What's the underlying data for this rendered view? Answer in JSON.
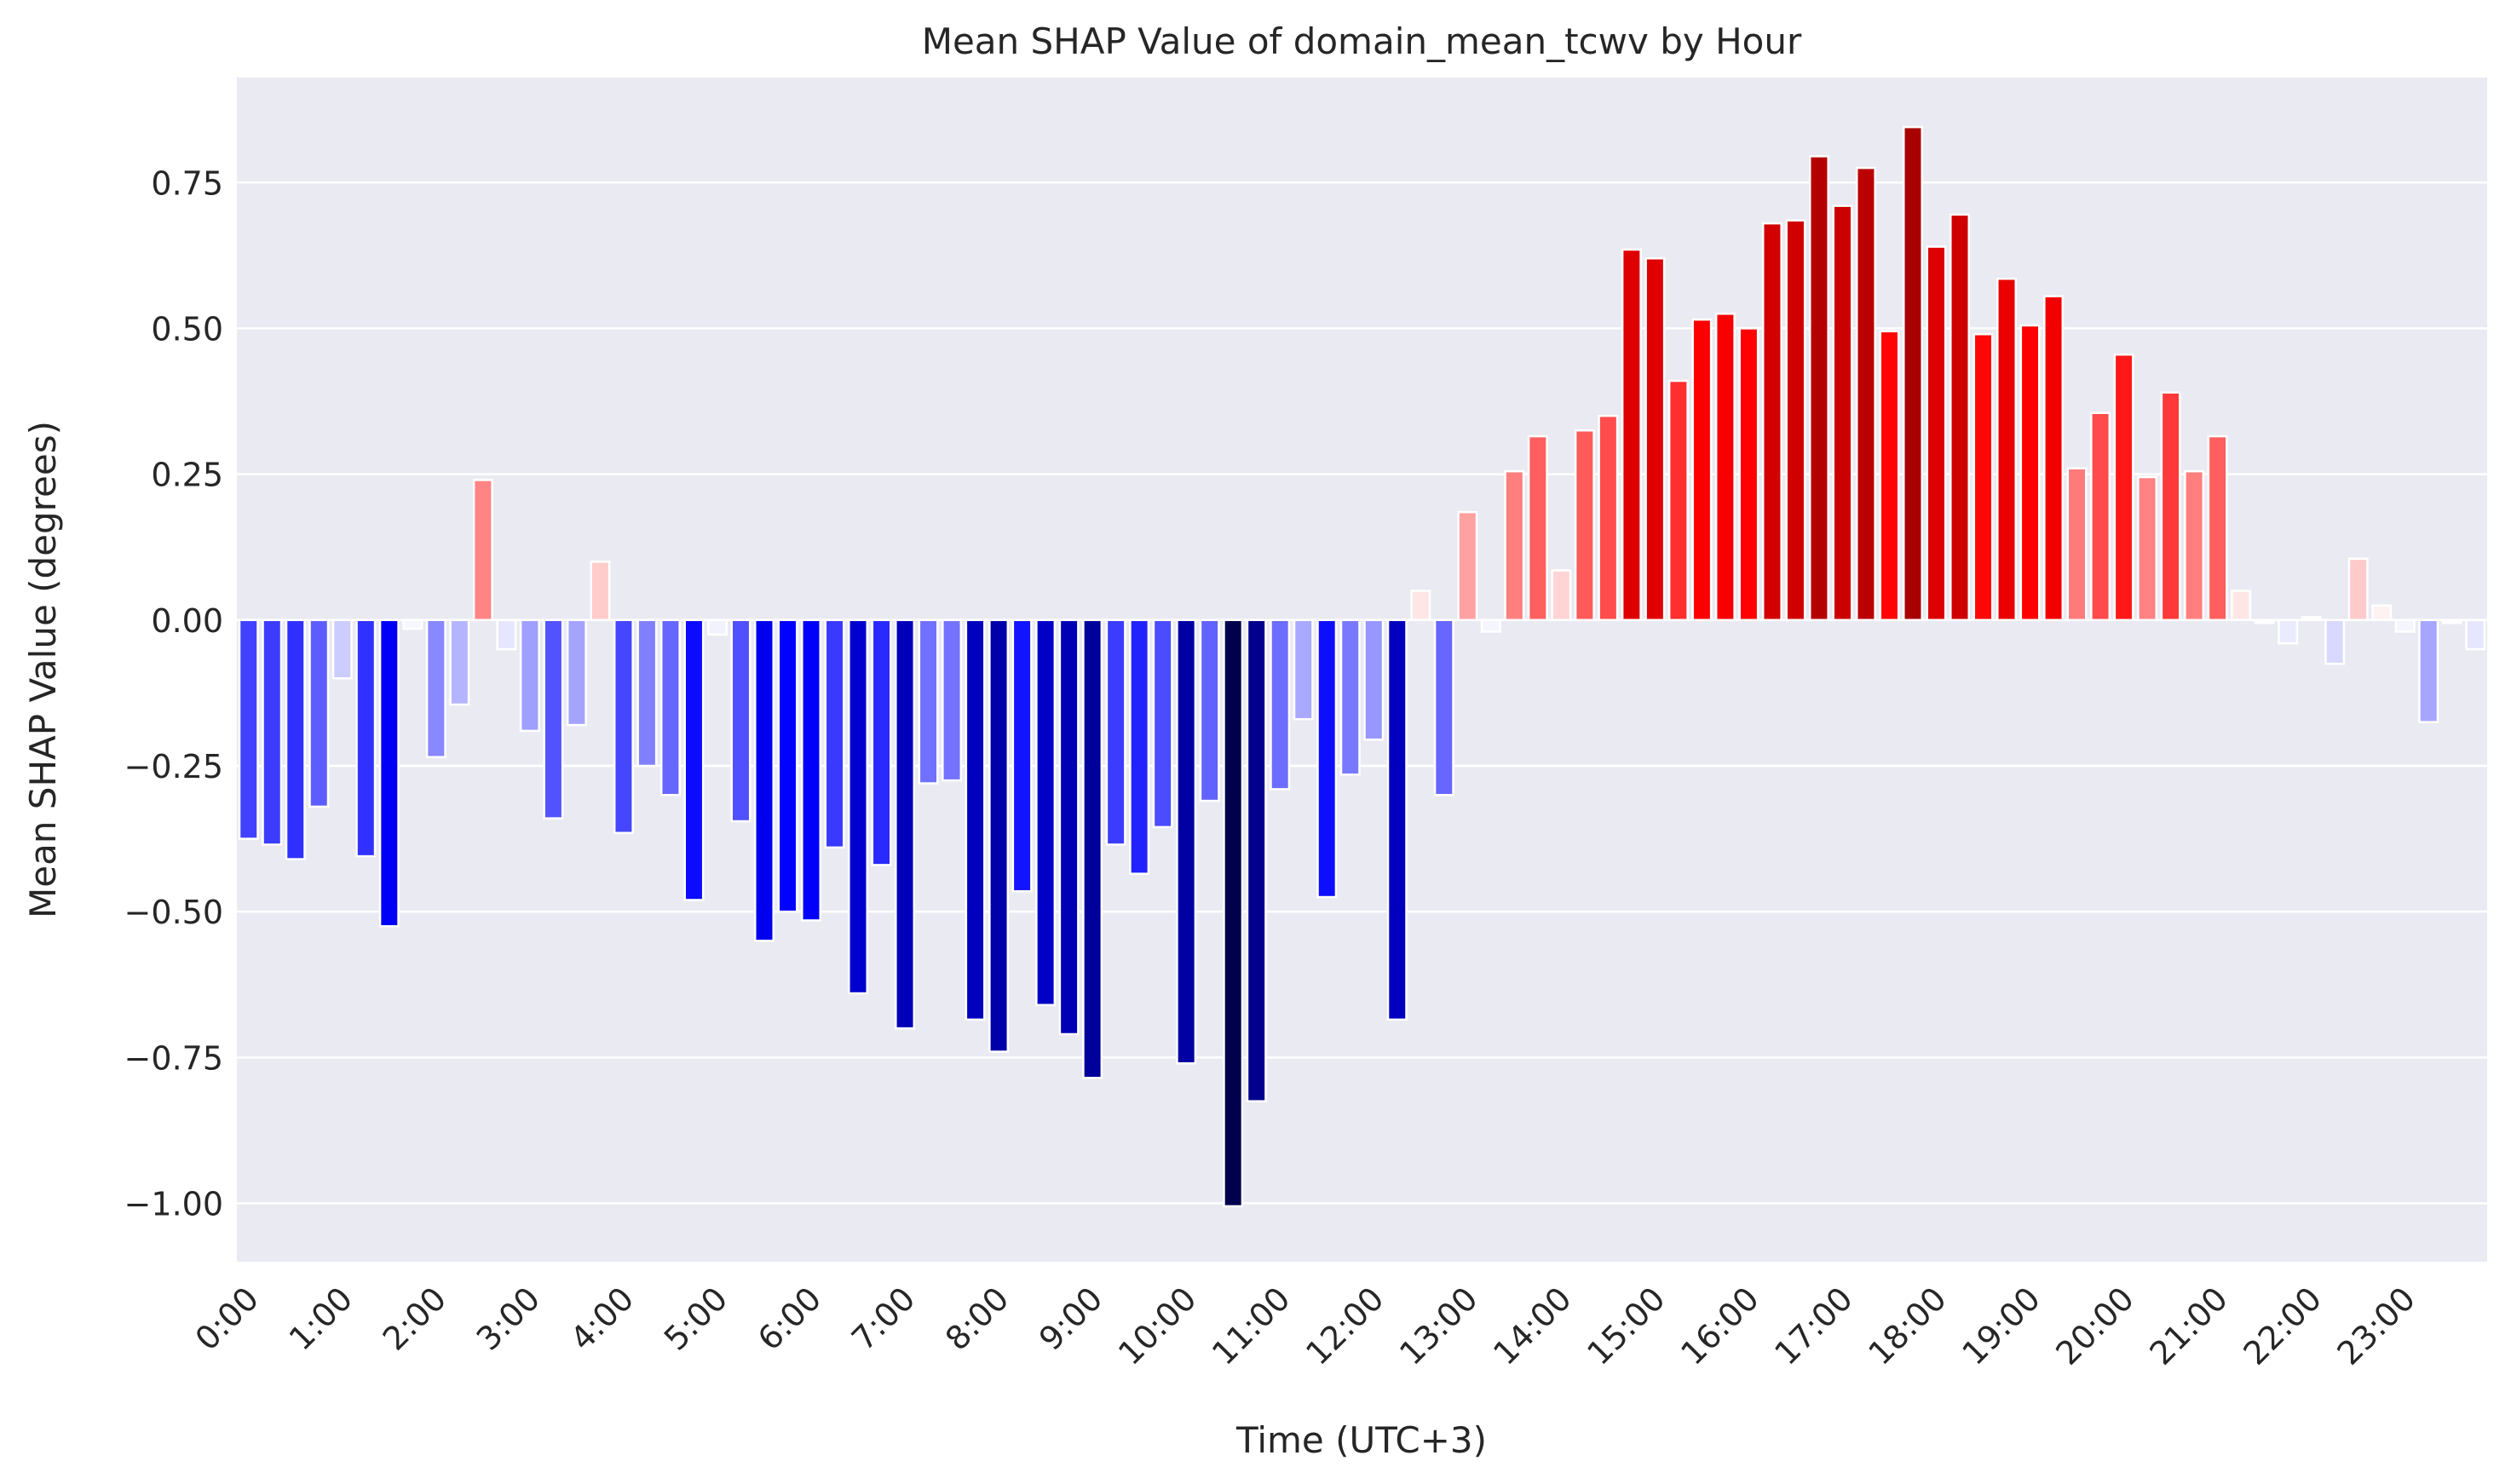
{
  "chart_data": {
    "type": "bar",
    "title": "Mean SHAP Value of domain_mean_tcwv by Hour",
    "xlabel": "Time (UTC+3)",
    "ylabel": "Mean SHAP Value (degrees)",
    "ylim": [
      -1.1,
      0.93
    ],
    "yticks": [
      -1.0,
      -0.75,
      -0.5,
      -0.25,
      0.0,
      0.25,
      0.5,
      0.75
    ],
    "ytick_labels": [
      "−1.00",
      "−0.75",
      "−0.50",
      "−0.25",
      "0.00",
      "0.25",
      "0.50",
      "0.75"
    ],
    "xtick_labels": [
      "0:00",
      "1:00",
      "2:00",
      "3:00",
      "4:00",
      "5:00",
      "6:00",
      "7:00",
      "8:00",
      "9:00",
      "10:00",
      "11:00",
      "12:00",
      "13:00",
      "14:00",
      "15:00",
      "16:00",
      "17:00",
      "18:00",
      "19:00",
      "20:00",
      "21:00",
      "22:00",
      "23:00"
    ],
    "bars_per_hour": 4,
    "grid": true,
    "legend": "none",
    "colormap": "seismic",
    "values": [
      -0.375,
      -0.385,
      -0.41,
      -0.32,
      -0.1,
      -0.405,
      -0.525,
      -0.015,
      -0.235,
      -0.145,
      0.24,
      -0.05,
      -0.19,
      -0.34,
      -0.18,
      0.1,
      -0.365,
      -0.25,
      -0.3,
      -0.48,
      -0.025,
      -0.345,
      -0.55,
      -0.5,
      -0.515,
      -0.39,
      -0.64,
      -0.42,
      -0.7,
      -0.28,
      -0.275,
      -0.685,
      -0.74,
      -0.465,
      -0.66,
      -0.71,
      -0.785,
      -0.385,
      -0.435,
      -0.355,
      -0.76,
      -0.31,
      -1.005,
      -0.825,
      -0.29,
      -0.17,
      -0.475,
      -0.265,
      -0.205,
      -0.685,
      0.05,
      -0.3,
      0.185,
      -0.02,
      0.255,
      0.315,
      0.085,
      0.325,
      0.35,
      0.635,
      0.62,
      0.41,
      0.515,
      0.525,
      0.5,
      0.68,
      0.685,
      0.795,
      0.71,
      0.775,
      0.495,
      0.845,
      0.64,
      0.695,
      0.49,
      0.585,
      0.505,
      0.555,
      0.26,
      0.355,
      0.455,
      0.245,
      0.39,
      0.255,
      0.315,
      0.05,
      -0.005,
      -0.04,
      0.005,
      -0.075,
      0.105,
      0.025,
      -0.02,
      -0.175,
      -0.005,
      -0.05
    ]
  }
}
